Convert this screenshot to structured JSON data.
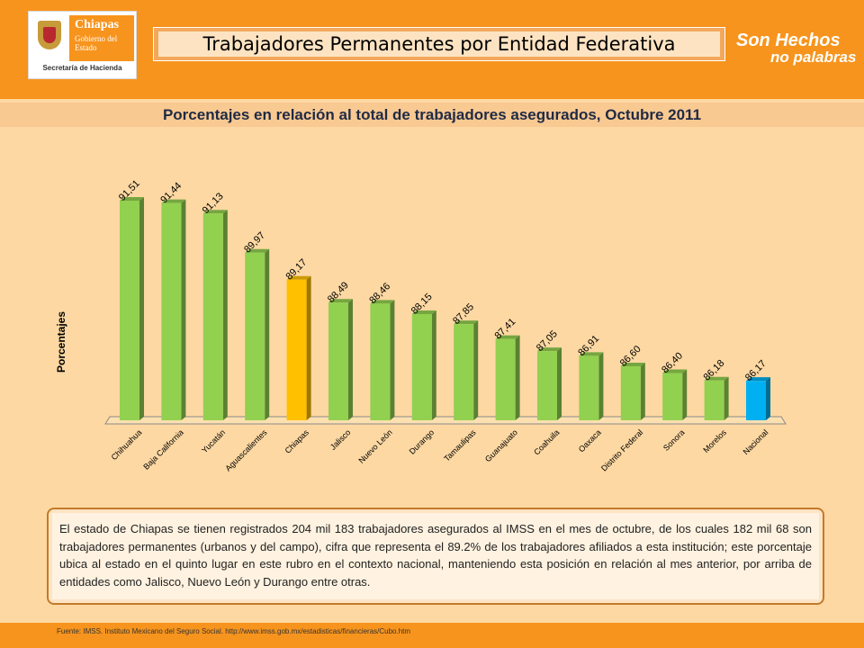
{
  "header": {
    "logo_name": "Chiapas",
    "logo_sub": "Gobierno del Estado",
    "logo_bottom": "Secretaría de Hacienda",
    "title": "Trabajadores Permanentes por Entidad Federativa",
    "slogan_line1": "Son Hechos",
    "slogan_line2": "no palabras"
  },
  "colors": {
    "bar_default": "#92d050",
    "bar_highlight": "#ffc000",
    "bar_national": "#00b0f0"
  },
  "chart_data": {
    "type": "bar",
    "title": "Porcentajes en relación al total de trabajadores asegurados, Octubre 2011",
    "ylabel": "Porcentajes",
    "xlabel": "",
    "categories": [
      "Chihuahua",
      "Baja California",
      "Yucatán",
      "Aguascalientes",
      "Chiapas",
      "Jalisco",
      "Nuevo León",
      "Durango",
      "Tamaulipas",
      "Guanajuato",
      "Coahuila",
      "Oaxaca",
      "Distrito Federal",
      "Sonora",
      "Morelos",
      "Nacional"
    ],
    "values": [
      91.51,
      91.44,
      91.13,
      89.97,
      89.17,
      88.49,
      88.46,
      88.15,
      87.85,
      87.41,
      87.05,
      86.91,
      86.6,
      86.4,
      86.18,
      86.17
    ],
    "value_labels": [
      "91,51",
      "91,44",
      "91,13",
      "89,97",
      "89,17",
      "88,49",
      "88,46",
      "88,15",
      "87,85",
      "87,41",
      "87,05",
      "86,91",
      "86,60",
      "86,40",
      "86,18",
      "86,17"
    ],
    "bar_colors": [
      "default",
      "default",
      "default",
      "default",
      "highlight",
      "default",
      "default",
      "default",
      "default",
      "default",
      "default",
      "default",
      "default",
      "default",
      "default",
      "national"
    ],
    "grid": false,
    "legend": "none"
  },
  "note": {
    "text": "El estado de Chiapas se tienen registrados 204 mil 183 trabajadores asegurados al IMSS en el mes de octubre, de los cuales 182 mil 68 son trabajadores permanentes (urbanos y del campo), cifra que representa el 89.2% de los trabajadores afiliados a esta institución; este porcentaje ubica al estado en el quinto lugar en este rubro en el contexto nacional, manteniendo esta posición en relación al mes anterior, por arriba de entidades como Jalisco, Nuevo León y Durango entre otras."
  },
  "footer": {
    "source": "Fuente:   IMSS. Instituto Mexicano del Seguro Social. http://www.imss.gob.mx/estadisticas/financieras/Cubo.htm"
  }
}
